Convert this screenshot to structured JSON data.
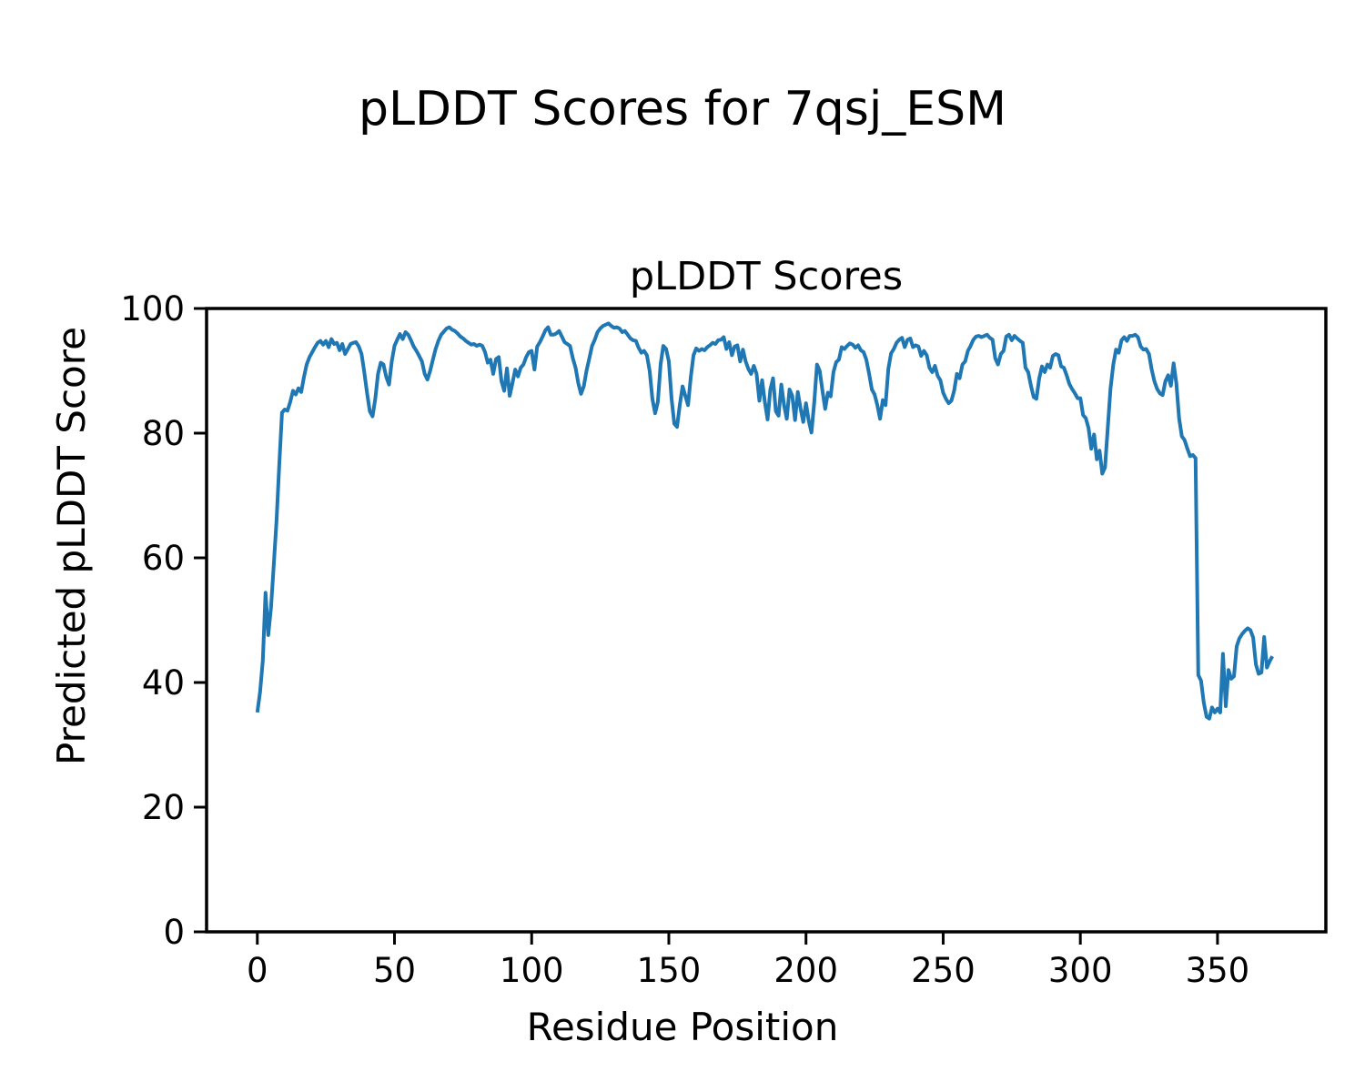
{
  "figure": {
    "background": "#ffffff",
    "suptitle": "pLDDT Scores for 7qsj_ESM"
  },
  "chart_data": {
    "type": "line",
    "title": "pLDDT Scores",
    "xlabel": "Residue Position",
    "ylabel": "Predicted pLDDT Score",
    "x_ticks": [
      0,
      50,
      100,
      150,
      200,
      250,
      300,
      350
    ],
    "y_ticks": [
      0,
      20,
      40,
      60,
      80,
      100
    ],
    "xlim": [
      -18.5,
      389.5
    ],
    "ylim": [
      0,
      100
    ],
    "grid": false,
    "legend": "none",
    "line_color": "#1f77b4",
    "spine_color": "#000000",
    "series": [
      {
        "name": "pLDDT",
        "x_start": 0,
        "x_step": 1,
        "values": [
          35.2,
          38.5,
          43.5,
          54.4,
          47.6,
          52.0,
          59.0,
          66.0,
          75.0,
          83.3,
          83.8,
          83.6,
          85.0,
          86.8,
          86.2,
          87.2,
          86.6,
          89.0,
          91.0,
          92.2,
          93.0,
          93.8,
          94.5,
          94.8,
          94.2,
          94.8,
          93.8,
          95.1,
          94.3,
          94.5,
          93.3,
          94.3,
          92.7,
          93.5,
          94.3,
          94.5,
          94.6,
          93.9,
          92.7,
          89.8,
          86.4,
          83.5,
          82.7,
          85.5,
          89.5,
          91.3,
          91.0,
          89.0,
          87.8,
          91.5,
          94.0,
          95.0,
          95.9,
          95.1,
          96.2,
          95.8,
          94.9,
          93.9,
          93.2,
          92.4,
          91.5,
          89.5,
          88.6,
          90.0,
          91.8,
          93.5,
          94.8,
          95.8,
          96.3,
          96.8,
          97.0,
          96.6,
          96.4,
          96.0,
          95.5,
          95.2,
          94.8,
          94.5,
          94.2,
          94.3,
          94.0,
          94.2,
          94.0,
          93.0,
          91.3,
          91.8,
          89.5,
          91.9,
          92.2,
          88.3,
          86.8,
          90.4,
          86.0,
          88.0,
          90.2,
          89.1,
          90.5,
          91.0,
          92.2,
          93.0,
          93.2,
          90.2,
          93.9,
          94.6,
          95.5,
          96.5,
          97.0,
          95.8,
          95.8,
          96.0,
          96.4,
          95.5,
          94.6,
          94.3,
          94.0,
          92.0,
          90.5,
          88.0,
          86.3,
          87.5,
          90.0,
          92.0,
          94.0,
          95.0,
          96.2,
          96.8,
          97.2,
          97.4,
          97.6,
          97.2,
          96.9,
          97.0,
          96.8,
          96.2,
          96.4,
          95.8,
          95.2,
          94.9,
          94.8,
          93.7,
          92.9,
          93.2,
          92.5,
          90.0,
          85.5,
          83.2,
          85.0,
          91.0,
          94.0,
          93.5,
          91.5,
          85.5,
          81.5,
          81.0,
          84.5,
          87.5,
          86.0,
          84.5,
          89.0,
          92.5,
          93.6,
          93.2,
          93.5,
          93.3,
          93.8,
          94.1,
          94.5,
          94.3,
          94.9,
          95.0,
          95.4,
          93.5,
          94.6,
          92.5,
          93.9,
          94.1,
          91.5,
          93.4,
          91.5,
          90.3,
          89.5,
          90.8,
          89.5,
          85.2,
          88.5,
          85.0,
          82.2,
          87.0,
          88.8,
          83.5,
          82.8,
          87.8,
          84.5,
          82.3,
          87.0,
          86.0,
          82.1,
          86.6,
          84.0,
          81.8,
          84.8,
          82.0,
          80.1,
          85.0,
          91.0,
          90.0,
          86.8,
          83.9,
          86.5,
          85.9,
          89.8,
          91.4,
          91.8,
          93.8,
          93.5,
          94.0,
          94.4,
          94.2,
          93.7,
          94.1,
          93.3,
          93.0,
          91.8,
          89.5,
          87.0,
          86.2,
          84.5,
          82.3,
          85.3,
          84.5,
          90.3,
          92.8,
          93.5,
          94.5,
          95.0,
          95.3,
          93.8,
          95.0,
          95.2,
          93.8,
          94.1,
          93.9,
          92.4,
          93.2,
          92.5,
          90.5,
          89.8,
          90.8,
          89.2,
          88.5,
          86.5,
          85.5,
          84.8,
          85.2,
          86.8,
          89.5,
          88.8,
          91.0,
          91.5,
          93.2,
          94.0,
          95.0,
          95.5,
          95.6,
          95.4,
          95.6,
          95.8,
          95.3,
          95.0,
          92.0,
          91.0,
          92.7,
          93.2,
          95.5,
          95.8,
          94.9,
          95.6,
          95.2,
          94.8,
          94.5,
          90.5,
          89.8,
          87.6,
          85.8,
          85.5,
          88.8,
          90.7,
          89.8,
          91.0,
          90.5,
          92.4,
          92.7,
          92.5,
          90.7,
          90.5,
          89.3,
          87.9,
          87.1,
          86.4,
          85.6,
          85.6,
          82.9,
          82.4,
          80.8,
          77.5,
          79.8,
          75.8,
          77.2,
          73.5,
          74.5,
          80.8,
          87.1,
          91.0,
          93.4,
          92.9,
          94.9,
          95.4,
          94.8,
          95.6,
          95.6,
          95.8,
          95.4,
          93.9,
          93.4,
          93.5,
          92.7,
          90.2,
          88.3,
          87.1,
          86.4,
          86.1,
          88.3,
          89.3,
          87.6,
          91.2,
          88.0,
          82.4,
          79.5,
          78.9,
          77.5,
          76.3,
          76.5,
          76.0,
          41.2,
          40.3,
          36.8,
          34.5,
          34.2,
          36.0,
          35.2,
          35.8,
          35.2,
          44.6,
          36.2,
          42.0,
          40.6,
          41.0,
          45.8,
          47.1,
          47.8,
          48.3,
          48.7,
          48.4,
          47.2,
          42.9,
          41.4,
          41.6,
          47.3,
          42.4,
          43.4,
          44.2
        ]
      }
    ]
  }
}
